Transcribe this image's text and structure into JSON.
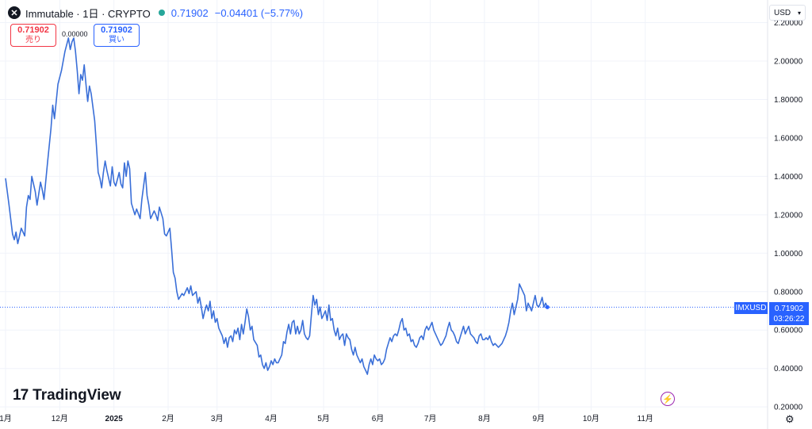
{
  "header": {
    "symbol_title": "Immutable · 1日 · CRYPTO",
    "logo_glyph": "✕",
    "last_price": "0.71902",
    "change": "−0.04401 (−5.77%)"
  },
  "trade": {
    "sell_price": "0.71902",
    "sell_label": "売り",
    "buy_price": "0.71902",
    "buy_label": "買い",
    "spread": "0.00000"
  },
  "currency": {
    "label": "USD",
    "icon": "chevron-down-icon"
  },
  "price_tag": {
    "symbol": "IMXUSD",
    "price": "0.71902",
    "countdown": "03:26:22"
  },
  "watermark": {
    "text": "TradingView",
    "icon_glyph": "17"
  },
  "colors": {
    "line": "#3a6fd8",
    "accent": "#2962ff",
    "sell": "#f23645",
    "grid": "#f0f3fa",
    "flash": "#9c27b0"
  },
  "chart_data": {
    "type": "line",
    "title": "Immutable · 1日 · CRYPTO",
    "xlabel": "",
    "ylabel": "",
    "ylim": [
      0.18,
      2.26
    ],
    "xlim": [
      0,
      436
    ],
    "y_ticks": [
      "2.20000",
      "2.00000",
      "1.80000",
      "1.60000",
      "1.40000",
      "1.20000",
      "1.00000",
      "0.80000",
      "0.60000",
      "0.40000",
      "0.20000"
    ],
    "x_ticks": [
      {
        "label": "1月",
        "day": 0
      },
      {
        "label": "12月",
        "day": 31
      },
      {
        "label": "2025",
        "day": 62
      },
      {
        "label": "2月",
        "day": 93
      },
      {
        "label": "3月",
        "day": 121
      },
      {
        "label": "4月",
        "day": 152
      },
      {
        "label": "5月",
        "day": 182
      },
      {
        "label": "6月",
        "day": 213
      },
      {
        "label": "7月",
        "day": 243
      },
      {
        "label": "8月",
        "day": 274
      },
      {
        "label": "9月",
        "day": 305
      },
      {
        "label": "10月",
        "day": 335
      },
      {
        "label": "11月",
        "day": 366
      }
    ],
    "grid": true,
    "last_value": 0.71902,
    "series": [
      {
        "name": "IMXUSD",
        "points": [
          [
            0,
            1.39
          ],
          [
            2,
            1.25
          ],
          [
            4,
            1.1
          ],
          [
            5,
            1.07
          ],
          [
            6,
            1.11
          ],
          [
            7,
            1.05
          ],
          [
            9,
            1.13
          ],
          [
            11,
            1.09
          ],
          [
            12,
            1.24
          ],
          [
            13,
            1.3
          ],
          [
            14,
            1.28
          ],
          [
            15,
            1.4
          ],
          [
            17,
            1.32
          ],
          [
            18,
            1.25
          ],
          [
            20,
            1.37
          ],
          [
            21,
            1.33
          ],
          [
            22,
            1.28
          ],
          [
            24,
            1.47
          ],
          [
            26,
            1.65
          ],
          [
            27,
            1.77
          ],
          [
            28,
            1.7
          ],
          [
            30,
            1.88
          ],
          [
            32,
            1.95
          ],
          [
            34,
            2.05
          ],
          [
            36,
            2.12
          ],
          [
            37,
            2.06
          ],
          [
            38,
            2.1
          ],
          [
            39,
            2.12
          ],
          [
            40,
            2.05
          ],
          [
            41,
            1.95
          ],
          [
            42,
            1.83
          ],
          [
            43,
            1.93
          ],
          [
            44,
            1.9
          ],
          [
            45,
            1.98
          ],
          [
            46,
            1.88
          ],
          [
            47,
            1.79
          ],
          [
            48,
            1.87
          ],
          [
            49,
            1.83
          ],
          [
            51,
            1.69
          ],
          [
            52,
            1.56
          ],
          [
            53,
            1.42
          ],
          [
            54,
            1.39
          ],
          [
            55,
            1.34
          ],
          [
            56,
            1.42
          ],
          [
            57,
            1.48
          ],
          [
            58,
            1.43
          ],
          [
            60,
            1.35
          ],
          [
            61,
            1.45
          ],
          [
            62,
            1.37
          ],
          [
            63,
            1.35
          ],
          [
            65,
            1.42
          ],
          [
            66,
            1.36
          ],
          [
            67,
            1.34
          ],
          [
            68,
            1.47
          ],
          [
            69,
            1.4
          ],
          [
            70,
            1.48
          ],
          [
            71,
            1.44
          ],
          [
            72,
            1.26
          ],
          [
            74,
            1.2
          ],
          [
            75,
            1.23
          ],
          [
            77,
            1.18
          ],
          [
            78,
            1.28
          ],
          [
            79,
            1.35
          ],
          [
            80,
            1.42
          ],
          [
            81,
            1.3
          ],
          [
            82,
            1.25
          ],
          [
            83,
            1.18
          ],
          [
            85,
            1.22
          ],
          [
            86,
            1.2
          ],
          [
            87,
            1.17
          ],
          [
            88,
            1.24
          ],
          [
            90,
            1.18
          ],
          [
            91,
            1.1
          ],
          [
            92,
            1.09
          ],
          [
            94,
            1.13
          ],
          [
            95,
            1.02
          ],
          [
            96,
            0.9
          ],
          [
            97,
            0.87
          ],
          [
            98,
            0.8
          ],
          [
            99,
            0.76
          ],
          [
            101,
            0.79
          ],
          [
            102,
            0.78
          ],
          [
            104,
            0.82
          ],
          [
            105,
            0.79
          ],
          [
            106,
            0.83
          ],
          [
            107,
            0.78
          ],
          [
            109,
            0.8
          ],
          [
            110,
            0.74
          ],
          [
            111,
            0.77
          ],
          [
            112,
            0.72
          ],
          [
            113,
            0.66
          ],
          [
            114,
            0.7
          ],
          [
            115,
            0.73
          ],
          [
            116,
            0.7
          ],
          [
            117,
            0.75
          ],
          [
            118,
            0.66
          ],
          [
            119,
            0.7
          ],
          [
            120,
            0.64
          ],
          [
            121,
            0.66
          ],
          [
            122,
            0.61
          ],
          [
            124,
            0.57
          ],
          [
            125,
            0.53
          ],
          [
            126,
            0.56
          ],
          [
            127,
            0.51
          ],
          [
            128,
            0.56
          ],
          [
            129,
            0.57
          ],
          [
            130,
            0.54
          ],
          [
            131,
            0.6
          ],
          [
            132,
            0.58
          ],
          [
            133,
            0.61
          ],
          [
            134,
            0.55
          ],
          [
            135,
            0.63
          ],
          [
            136,
            0.58
          ],
          [
            137,
            0.64
          ],
          [
            138,
            0.71
          ],
          [
            139,
            0.67
          ],
          [
            140,
            0.6
          ],
          [
            141,
            0.62
          ],
          [
            142,
            0.55
          ],
          [
            144,
            0.52
          ],
          [
            145,
            0.46
          ],
          [
            146,
            0.47
          ],
          [
            147,
            0.42
          ],
          [
            148,
            0.4
          ],
          [
            149,
            0.43
          ],
          [
            150,
            0.39
          ],
          [
            151,
            0.41
          ],
          [
            152,
            0.44
          ],
          [
            153,
            0.42
          ],
          [
            154,
            0.45
          ],
          [
            155,
            0.43
          ],
          [
            156,
            0.43
          ],
          [
            157,
            0.45
          ],
          [
            158,
            0.47
          ],
          [
            159,
            0.54
          ],
          [
            160,
            0.53
          ],
          [
            161,
            0.59
          ],
          [
            162,
            0.63
          ],
          [
            163,
            0.58
          ],
          [
            164,
            0.64
          ],
          [
            165,
            0.65
          ],
          [
            166,
            0.58
          ],
          [
            167,
            0.62
          ],
          [
            168,
            0.58
          ],
          [
            169,
            0.6
          ],
          [
            170,
            0.65
          ],
          [
            171,
            0.58
          ],
          [
            172,
            0.56
          ],
          [
            173,
            0.55
          ],
          [
            174,
            0.57
          ],
          [
            175,
            0.68
          ],
          [
            176,
            0.78
          ],
          [
            177,
            0.73
          ],
          [
            178,
            0.76
          ],
          [
            179,
            0.68
          ],
          [
            180,
            0.72
          ],
          [
            181,
            0.66
          ],
          [
            182,
            0.68
          ],
          [
            183,
            0.7
          ],
          [
            184,
            0.65
          ],
          [
            185,
            0.73
          ],
          [
            186,
            0.65
          ],
          [
            187,
            0.66
          ],
          [
            188,
            0.6
          ],
          [
            189,
            0.57
          ],
          [
            190,
            0.61
          ],
          [
            191,
            0.55
          ],
          [
            192,
            0.57
          ],
          [
            193,
            0.58
          ],
          [
            194,
            0.52
          ],
          [
            195,
            0.58
          ],
          [
            196,
            0.56
          ],
          [
            197,
            0.55
          ],
          [
            198,
            0.5
          ],
          [
            199,
            0.47
          ],
          [
            200,
            0.51
          ],
          [
            201,
            0.47
          ],
          [
            202,
            0.45
          ],
          [
            203,
            0.43
          ],
          [
            204,
            0.45
          ],
          [
            205,
            0.41
          ],
          [
            206,
            0.39
          ],
          [
            207,
            0.37
          ],
          [
            208,
            0.42
          ],
          [
            209,
            0.45
          ],
          [
            210,
            0.42
          ],
          [
            211,
            0.47
          ],
          [
            212,
            0.45
          ],
          [
            213,
            0.44
          ],
          [
            214,
            0.45
          ],
          [
            215,
            0.42
          ],
          [
            216,
            0.43
          ],
          [
            217,
            0.45
          ],
          [
            218,
            0.5
          ],
          [
            219,
            0.53
          ],
          [
            220,
            0.56
          ],
          [
            221,
            0.54
          ],
          [
            222,
            0.57
          ],
          [
            223,
            0.58
          ],
          [
            224,
            0.57
          ],
          [
            225,
            0.6
          ],
          [
            226,
            0.64
          ],
          [
            227,
            0.66
          ],
          [
            228,
            0.6
          ],
          [
            229,
            0.61
          ],
          [
            230,
            0.57
          ],
          [
            231,
            0.58
          ],
          [
            232,
            0.54
          ],
          [
            233,
            0.55
          ],
          [
            234,
            0.52
          ],
          [
            235,
            0.51
          ],
          [
            236,
            0.53
          ],
          [
            237,
            0.56
          ],
          [
            238,
            0.57
          ],
          [
            239,
            0.55
          ],
          [
            240,
            0.6
          ],
          [
            241,
            0.62
          ],
          [
            242,
            0.6
          ],
          [
            243,
            0.62
          ],
          [
            244,
            0.64
          ],
          [
            245,
            0.6
          ],
          [
            246,
            0.58
          ],
          [
            247,
            0.56
          ],
          [
            248,
            0.54
          ],
          [
            249,
            0.52
          ],
          [
            250,
            0.53
          ],
          [
            251,
            0.55
          ],
          [
            252,
            0.57
          ],
          [
            253,
            0.61
          ],
          [
            254,
            0.64
          ],
          [
            255,
            0.6
          ],
          [
            256,
            0.59
          ],
          [
            257,
            0.57
          ],
          [
            258,
            0.54
          ],
          [
            259,
            0.53
          ],
          [
            260,
            0.56
          ],
          [
            261,
            0.59
          ],
          [
            262,
            0.62
          ],
          [
            263,
            0.58
          ],
          [
            264,
            0.6
          ],
          [
            265,
            0.62
          ],
          [
            266,
            0.58
          ],
          [
            267,
            0.57
          ],
          [
            268,
            0.56
          ],
          [
            269,
            0.54
          ],
          [
            270,
            0.53
          ],
          [
            271,
            0.57
          ],
          [
            272,
            0.58
          ],
          [
            273,
            0.55
          ],
          [
            274,
            0.55
          ],
          [
            275,
            0.56
          ],
          [
            276,
            0.55
          ],
          [
            277,
            0.57
          ],
          [
            278,
            0.54
          ],
          [
            279,
            0.52
          ],
          [
            280,
            0.53
          ],
          [
            281,
            0.52
          ],
          [
            282,
            0.51
          ],
          [
            283,
            0.52
          ],
          [
            284,
            0.53
          ],
          [
            285,
            0.55
          ],
          [
            286,
            0.57
          ],
          [
            287,
            0.6
          ],
          [
            288,
            0.64
          ],
          [
            289,
            0.7
          ],
          [
            290,
            0.74
          ],
          [
            291,
            0.68
          ],
          [
            292,
            0.72
          ],
          [
            293,
            0.76
          ],
          [
            294,
            0.84
          ],
          [
            295,
            0.82
          ],
          [
            296,
            0.8
          ],
          [
            297,
            0.78
          ],
          [
            298,
            0.7
          ],
          [
            299,
            0.74
          ],
          [
            300,
            0.72
          ],
          [
            301,
            0.7
          ],
          [
            302,
            0.74
          ],
          [
            303,
            0.78
          ],
          [
            304,
            0.73
          ],
          [
            305,
            0.72
          ],
          [
            306,
            0.74
          ],
          [
            307,
            0.77
          ],
          [
            308,
            0.72
          ],
          [
            309,
            0.74
          ],
          [
            310,
            0.72
          ]
        ]
      }
    ]
  }
}
